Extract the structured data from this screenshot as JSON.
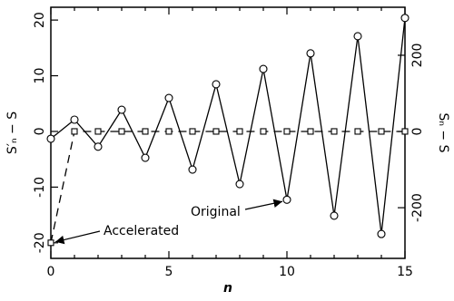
{
  "chart_data": {
    "type": "line",
    "xlabel": "n",
    "ylabel": "S′ₙ − S",
    "y2label": "Sₙ − S",
    "x": [
      0,
      1,
      2,
      3,
      4,
      5,
      6,
      7,
      8,
      9,
      10,
      11,
      12,
      13,
      14,
      15
    ],
    "series": [
      {
        "name": "Original",
        "color": "#000000",
        "axis": "y2",
        "marker": "circle",
        "dash": false,
        "values": [
          -19,
          31,
          -40,
          57,
          -69,
          88,
          -100,
          124,
          -138,
          164,
          -179,
          205,
          -221,
          250,
          -269,
          298
        ]
      },
      {
        "name": "Accelerated",
        "color": "#000000",
        "axis": "y",
        "marker": "square",
        "dash": true,
        "values": [
          -20,
          0,
          0,
          0,
          0,
          0,
          0,
          0,
          0,
          0,
          0,
          0,
          0,
          0,
          0,
          0
        ]
      }
    ],
    "xlim": [
      0,
      15
    ],
    "xticks": [
      0,
      5,
      10,
      15
    ],
    "xminorticks": [
      1,
      2,
      3,
      4,
      6,
      7,
      8,
      9,
      11,
      12,
      13,
      14
    ],
    "ylim": [
      -22.8,
      22.3
    ],
    "yticks": [
      -20,
      -10,
      0,
      10,
      20
    ],
    "y2lim": [
      -333,
      326
    ],
    "y2ticks": [
      -200,
      0,
      200
    ]
  }
}
